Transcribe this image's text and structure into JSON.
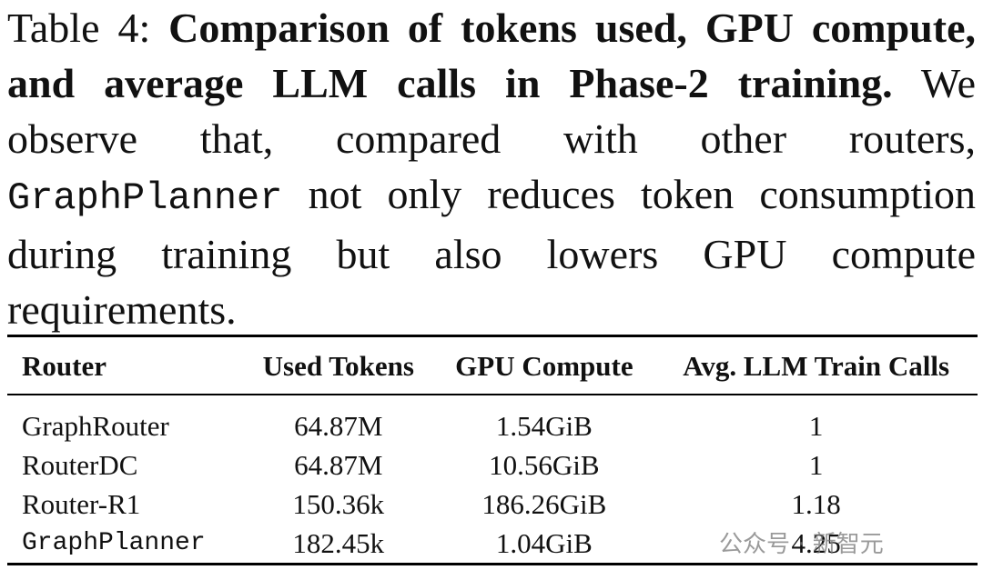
{
  "caption": {
    "label": "Table 4:",
    "bold": "Comparison of tokens used, GPU compute, and average LLM calls in Phase-2 training.",
    "text_before": "We observe that, compared with other routers,",
    "code": "GraphPlanner",
    "text_after": "not only reduces token consumption during training but also lowers GPU compute requirements."
  },
  "table": {
    "headers": [
      "Router",
      "Used Tokens",
      "GPU Compute",
      "Avg. LLM Train Calls"
    ],
    "rows": [
      [
        "GraphRouter",
        "64.87M",
        "1.54GiB",
        "1"
      ],
      [
        "RouterDC",
        "64.87M",
        "10.56GiB",
        "1"
      ],
      [
        "Router-R1",
        "150.36k",
        "186.26GiB",
        "1.18"
      ],
      [
        "GraphPlanner",
        "182.45k",
        "1.04GiB",
        "4.25"
      ]
    ]
  },
  "watermark": "公众号 · 新智元"
}
